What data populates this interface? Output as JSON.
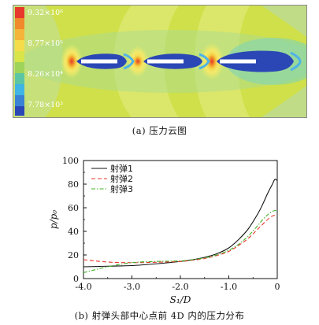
{
  "colors": {
    "series1": "#111111",
    "series2": "#e8382b",
    "series3": "#43b02a",
    "contour_background": "#cfe04a",
    "contour_low": "#2b47b6",
    "contour_high": "#e8382b"
  },
  "panel_a": {
    "colorbar_labels": [
      "9.32×10⁶",
      "8.77×10⁵",
      "8.26×10⁴",
      "7.78×10³"
    ],
    "caption": "(a) 压力云图"
  },
  "panel_b": {
    "caption": "(b) 射弹头部中心点前 4D 内的压力分布"
  },
  "chart_data": {
    "type": "line",
    "xlabel": "S₁/D",
    "ylabel": "p/p₀",
    "xlim": [
      -4.0,
      0.0
    ],
    "ylim": [
      0,
      100
    ],
    "x_ticks": [
      "-4.0",
      "-3.0",
      "-2.0",
      "-1.0",
      "0"
    ],
    "y_ticks": [
      "0",
      "20",
      "40",
      "60",
      "80",
      "100"
    ],
    "grid": false,
    "legend_position": "top-left",
    "series": [
      {
        "name": "射弹1",
        "style": "solid",
        "x": [
          -4.0,
          -3.5,
          -3.0,
          -2.5,
          -2.0,
          -1.75,
          -1.5,
          -1.25,
          -1.0,
          -0.8,
          -0.6,
          -0.4,
          -0.3,
          -0.2,
          -0.1,
          -0.05,
          0.0
        ],
        "y": [
          10,
          10.5,
          11,
          12.5,
          14.5,
          16,
          18,
          21,
          26,
          33,
          42,
          55,
          63,
          72,
          80,
          84,
          83
        ]
      },
      {
        "name": "射弹2",
        "style": "dashed",
        "x": [
          -4.0,
          -3.5,
          -3.0,
          -2.5,
          -2.0,
          -1.75,
          -1.5,
          -1.25,
          -1.0,
          -0.8,
          -0.6,
          -0.4,
          -0.3,
          -0.2,
          -0.1,
          0.0
        ],
        "y": [
          16,
          14,
          13.5,
          13.8,
          14.5,
          15.5,
          17,
          19.5,
          23,
          28,
          34,
          42,
          46,
          50,
          53,
          54
        ]
      },
      {
        "name": "射弹3",
        "style": "dashdot",
        "x": [
          -4.0,
          -3.5,
          -3.0,
          -2.5,
          -2.0,
          -1.75,
          -1.5,
          -1.25,
          -1.0,
          -0.8,
          -0.6,
          -0.4,
          -0.3,
          -0.2,
          -0.1,
          0.0
        ],
        "y": [
          5,
          10,
          13.5,
          14.5,
          15,
          16,
          17.5,
          20,
          24,
          29,
          36,
          45,
          50,
          54,
          57,
          58
        ]
      }
    ]
  }
}
